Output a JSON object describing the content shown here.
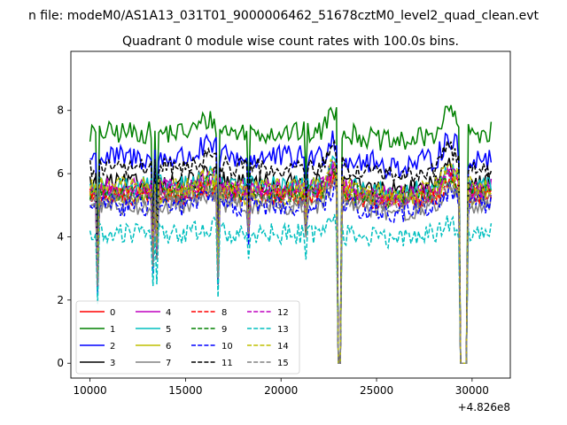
{
  "chart_data": {
    "type": "line",
    "suptitle": "n file: modeM0/AS1A13_031T01_9000006462_51678cztM0_level2_quad_clean.evt",
    "title": "Quadrant 0 module wise count rates with 100.0s bins.",
    "xlabel": "",
    "ylabel": "",
    "x_offset_label": "+4.826e8",
    "xlim": [
      9000,
      32000
    ],
    "ylim": [
      -0.47,
      9.87
    ],
    "x_ticks": [
      10000,
      15000,
      20000,
      25000,
      30000
    ],
    "x_tick_labels": [
      "10000",
      "15000",
      "20000",
      "25000",
      "30000"
    ],
    "y_ticks": [
      0,
      2,
      4,
      6,
      8
    ],
    "y_tick_labels": [
      "0",
      "2",
      "4",
      "6",
      "8"
    ],
    "x_start": 10000,
    "x_step": 100,
    "x_end": 31000,
    "legend_position": "lower-left",
    "legend_columns": 4,
    "gaps": [
      {
        "start": 23000,
        "end": 23100
      },
      {
        "start": 29400,
        "end": 29700
      }
    ],
    "dips": [
      {
        "x": 10400,
        "depth": 0.55
      },
      {
        "x": 13300,
        "depth": 0.4
      },
      {
        "x": 13500,
        "depth": 0.35
      },
      {
        "x": 16700,
        "depth": 0.5
      },
      {
        "x": 18300,
        "depth": 0.25
      },
      {
        "x": 21300,
        "depth": 0.2
      }
    ],
    "series": [
      {
        "name": "0",
        "color": "#ff0000",
        "style": "solid",
        "base": 5.4,
        "noise": 0.3
      },
      {
        "name": "1",
        "color": "#008000",
        "style": "solid",
        "base": 7.3,
        "noise": 0.35
      },
      {
        "name": "2",
        "color": "#0000ff",
        "style": "solid",
        "base": 6.5,
        "noise": 0.4
      },
      {
        "name": "3",
        "color": "#000000",
        "style": "solid",
        "base": 5.7,
        "noise": 0.3
      },
      {
        "name": "4",
        "color": "#bf00bf",
        "style": "solid",
        "base": 5.5,
        "noise": 0.35
      },
      {
        "name": "5",
        "color": "#00bfbf",
        "style": "solid",
        "base": 5.6,
        "noise": 0.35
      },
      {
        "name": "6",
        "color": "#bfbf00",
        "style": "solid",
        "base": 5.3,
        "noise": 0.3
      },
      {
        "name": "7",
        "color": "#808080",
        "style": "solid",
        "base": 5.0,
        "noise": 0.3
      },
      {
        "name": "8",
        "color": "#ff0000",
        "style": "dashed",
        "base": 5.3,
        "noise": 0.3
      },
      {
        "name": "9",
        "color": "#008000",
        "style": "dashed",
        "base": 5.4,
        "noise": 0.3
      },
      {
        "name": "10",
        "color": "#0000ff",
        "style": "dashed",
        "base": 5.0,
        "noise": 0.35
      },
      {
        "name": "11",
        "color": "#000000",
        "style": "dashed",
        "base": 6.2,
        "noise": 0.3
      },
      {
        "name": "12",
        "color": "#bf00bf",
        "style": "dashed",
        "base": 5.5,
        "noise": 0.3
      },
      {
        "name": "13",
        "color": "#00bfbf",
        "style": "dashed",
        "base": 4.1,
        "noise": 0.35
      },
      {
        "name": "14",
        "color": "#bfbf00",
        "style": "dashed",
        "base": 5.6,
        "noise": 0.3
      },
      {
        "name": "15",
        "color": "#808080",
        "style": "dashed",
        "base": 5.2,
        "noise": 0.3
      }
    ]
  }
}
